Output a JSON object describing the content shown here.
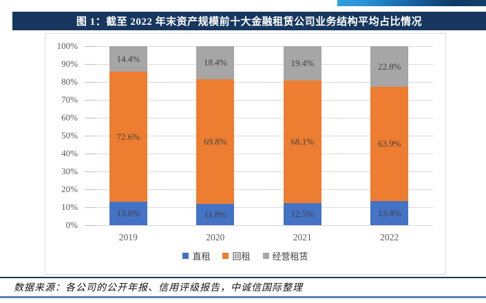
{
  "header": {
    "title": "图 1：截至 2022 年末资产规模前十大金融租赁公司业务结构平均占比情况"
  },
  "footer": {
    "source": "数据来源：各公司的公开年报、信用评级报告，中诚信国际整理"
  },
  "colors": {
    "title_bar": "#17375E",
    "series_blue": "#4472C4",
    "series_orange": "#ED7D31",
    "series_gray": "#A6A6A6",
    "gridline": "#D9D9D9",
    "axis_text": "#595959",
    "data_label_text": "#404040",
    "footer_rule_top": "#17375E",
    "footer_rule_bottom": "#5E81A8"
  },
  "chart_data": {
    "type": "bar",
    "stacked": true,
    "orientation": "vertical",
    "categories": [
      "2019",
      "2020",
      "2021",
      "2022"
    ],
    "series": [
      {
        "name": "直租",
        "color": "#4472C4",
        "values": [
          13.0,
          11.8,
          12.5,
          13.4
        ]
      },
      {
        "name": "回租",
        "color": "#ED7D31",
        "values": [
          72.6,
          69.8,
          68.1,
          63.9
        ]
      },
      {
        "name": "经营租赁",
        "color": "#A6A6A6",
        "values": [
          14.4,
          18.4,
          19.4,
          22.8
        ]
      }
    ],
    "data_labels": true,
    "value_suffix": "%",
    "ylim": [
      0,
      100
    ],
    "y_tick_step": 10,
    "y_ticks": [
      "0%",
      "10%",
      "20%",
      "30%",
      "40%",
      "50%",
      "60%",
      "70%",
      "80%",
      "90%",
      "100%"
    ],
    "grid": true,
    "legend_position": "bottom"
  }
}
